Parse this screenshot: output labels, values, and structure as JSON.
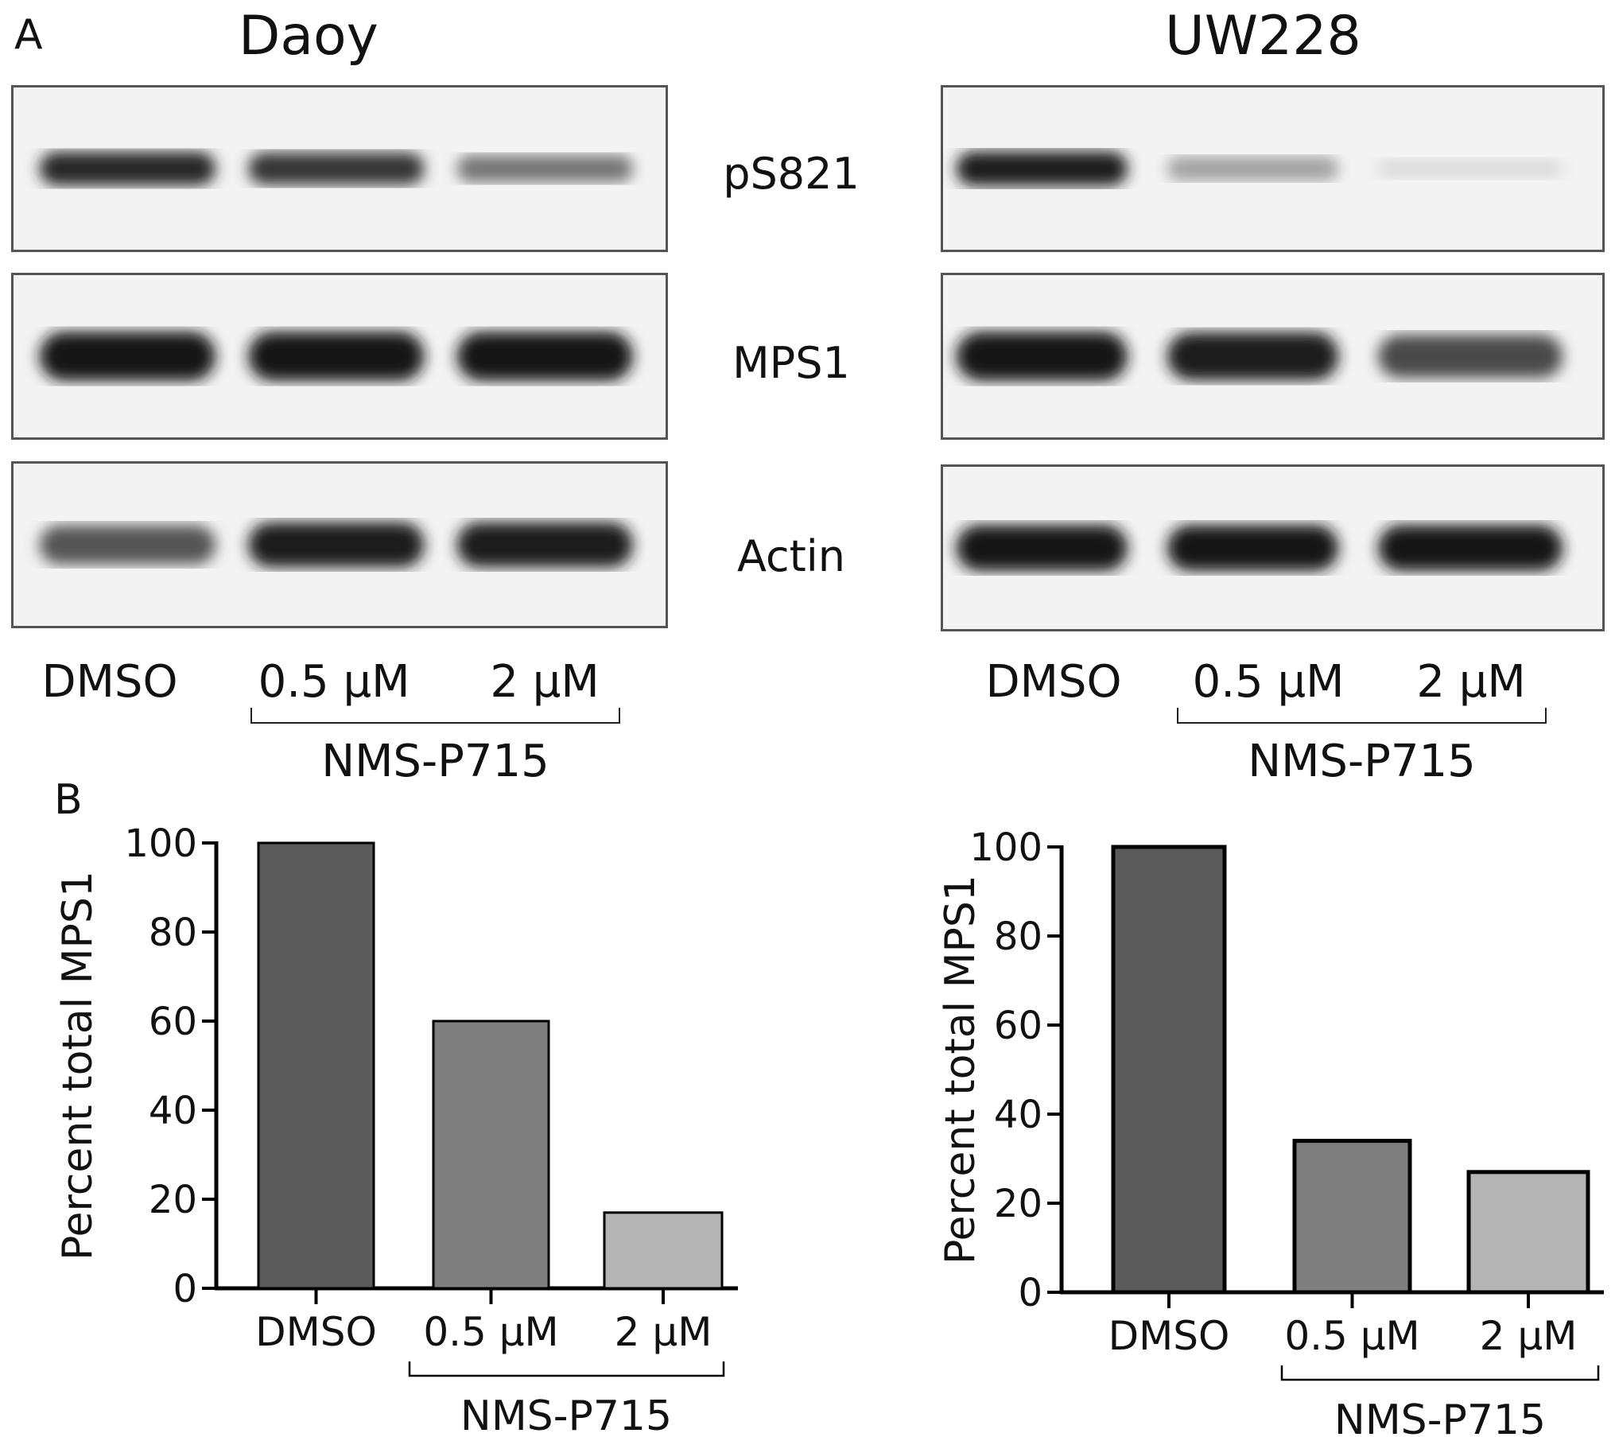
{
  "panel_a": {
    "letter": "A",
    "blots": [
      {
        "cell_line": "Daoy",
        "lanes": [
          "DMSO",
          "0.5 μM",
          "2 μM"
        ],
        "drug": "NMS-P715",
        "rows": [
          {
            "protein": "pS821",
            "band_intensity": [
              0.92,
              0.85,
              0.55
            ]
          },
          {
            "protein": "MPS1",
            "band_intensity": [
              1.0,
              1.0,
              1.0
            ]
          },
          {
            "protein": "Actin",
            "band_intensity": [
              0.7,
              0.95,
              0.95
            ]
          }
        ]
      },
      {
        "cell_line": "UW228",
        "lanes": [
          "DMSO",
          "0.5 μM",
          "2 μM"
        ],
        "drug": "NMS-P715",
        "rows": [
          {
            "protein": "pS821",
            "band_intensity": [
              0.95,
              0.35,
              0.08
            ]
          },
          {
            "protein": "MPS1",
            "band_intensity": [
              1.0,
              0.95,
              0.75
            ]
          },
          {
            "protein": "Actin",
            "band_intensity": [
              1.0,
              1.0,
              1.0
            ]
          }
        ]
      }
    ]
  },
  "panel_b": {
    "letter": "B",
    "drug": "NMS-P715"
  },
  "chart_data": [
    {
      "type": "bar",
      "categories": [
        "DMSO",
        "0.5 μM",
        "2 μM"
      ],
      "values": [
        100,
        60,
        17
      ],
      "ylabel": "Percent total MPS1",
      "ylim": [
        0,
        100
      ],
      "yticks": [
        "0",
        "20",
        "40",
        "60",
        "80",
        "100"
      ],
      "bar_colors": [
        "#5a5a5a",
        "#7f7f7f",
        "#b4b4b4"
      ],
      "grid": false
    },
    {
      "type": "bar",
      "categories": [
        "DMSO",
        "0.5 μM",
        "2 μM"
      ],
      "values": [
        100,
        34,
        27
      ],
      "ylabel": "Percent total MPS1",
      "ylim": [
        0,
        100
      ],
      "yticks": [
        "0",
        "20",
        "40",
        "60",
        "80",
        "100"
      ],
      "bar_colors": [
        "#5a5a5a",
        "#7f7f7f",
        "#b4b4b4"
      ],
      "grid": false
    }
  ]
}
